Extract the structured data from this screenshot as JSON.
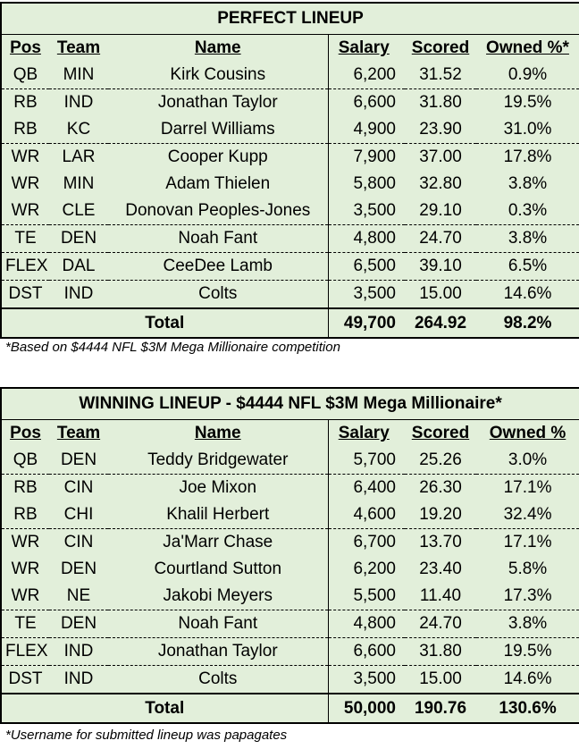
{
  "perfect": {
    "title": "PERFECT LINEUP",
    "headers": {
      "pos": "Pos",
      "team": "Team",
      "name": "Name",
      "salary": "Salary",
      "scored": "Scored",
      "owned": "Owned %*"
    },
    "rows": [
      {
        "pos": "QB",
        "team": "MIN",
        "name": "Kirk Cousins",
        "salary": "6,200",
        "scored": "31.52",
        "owned": "0.9%"
      },
      {
        "pos": "RB",
        "team": "IND",
        "name": "Jonathan Taylor",
        "salary": "6,600",
        "scored": "31.80",
        "owned": "19.5%"
      },
      {
        "pos": "RB",
        "team": "KC",
        "name": "Darrel Williams",
        "salary": "4,900",
        "scored": "23.90",
        "owned": "31.0%"
      },
      {
        "pos": "WR",
        "team": "LAR",
        "name": "Cooper Kupp",
        "salary": "7,900",
        "scored": "37.00",
        "owned": "17.8%"
      },
      {
        "pos": "WR",
        "team": "MIN",
        "name": "Adam Thielen",
        "salary": "5,800",
        "scored": "32.80",
        "owned": "3.8%"
      },
      {
        "pos": "WR",
        "team": "CLE",
        "name": "Donovan Peoples-Jones",
        "salary": "3,500",
        "scored": "29.10",
        "owned": "0.3%"
      },
      {
        "pos": "TE",
        "team": "DEN",
        "name": "Noah Fant",
        "salary": "4,800",
        "scored": "24.70",
        "owned": "3.8%"
      },
      {
        "pos": "FLEX",
        "team": "DAL",
        "name": "CeeDee Lamb",
        "salary": "6,500",
        "scored": "39.10",
        "owned": "6.5%"
      },
      {
        "pos": "DST",
        "team": "IND",
        "name": "Colts",
        "salary": "3,500",
        "scored": "15.00",
        "owned": "14.6%"
      }
    ],
    "total": {
      "label": "Total",
      "salary": "49,700",
      "scored": "264.92",
      "owned": "98.2%"
    },
    "note": "*Based on $4444 NFL $3M Mega Millionaire competition"
  },
  "winning": {
    "title": "WINNING LINEUP - $4444 NFL $3M Mega Millionaire*",
    "headers": {
      "pos": "Pos",
      "team": "Team",
      "name": "Name",
      "salary": "Salary",
      "scored": "Scored",
      "owned": "Owned %"
    },
    "rows": [
      {
        "pos": "QB",
        "team": "DEN",
        "name": "Teddy Bridgewater",
        "salary": "5,700",
        "scored": "25.26",
        "owned": "3.0%"
      },
      {
        "pos": "RB",
        "team": "CIN",
        "name": "Joe Mixon",
        "salary": "6,400",
        "scored": "26.30",
        "owned": "17.1%"
      },
      {
        "pos": "RB",
        "team": "CHI",
        "name": "Khalil Herbert",
        "salary": "4,600",
        "scored": "19.20",
        "owned": "32.4%"
      },
      {
        "pos": "WR",
        "team": "CIN",
        "name": "Ja'Marr Chase",
        "salary": "6,700",
        "scored": "13.70",
        "owned": "17.1%"
      },
      {
        "pos": "WR",
        "team": "DEN",
        "name": "Courtland Sutton",
        "salary": "6,200",
        "scored": "23.40",
        "owned": "5.8%"
      },
      {
        "pos": "WR",
        "team": "NE",
        "name": "Jakobi Meyers",
        "salary": "5,500",
        "scored": "11.40",
        "owned": "17.3%"
      },
      {
        "pos": "TE",
        "team": "DEN",
        "name": "Noah Fant",
        "salary": "4,800",
        "scored": "24.70",
        "owned": "3.8%"
      },
      {
        "pos": "FLEX",
        "team": "IND",
        "name": "Jonathan Taylor",
        "salary": "6,600",
        "scored": "31.80",
        "owned": "19.5%"
      },
      {
        "pos": "DST",
        "team": "IND",
        "name": "Colts",
        "salary": "3,500",
        "scored": "15.00",
        "owned": "14.6%"
      }
    ],
    "total": {
      "label": "Total",
      "salary": "50,000",
      "scored": "190.76",
      "owned": "130.6%"
    },
    "note": "*Username for submitted lineup was papagates"
  }
}
